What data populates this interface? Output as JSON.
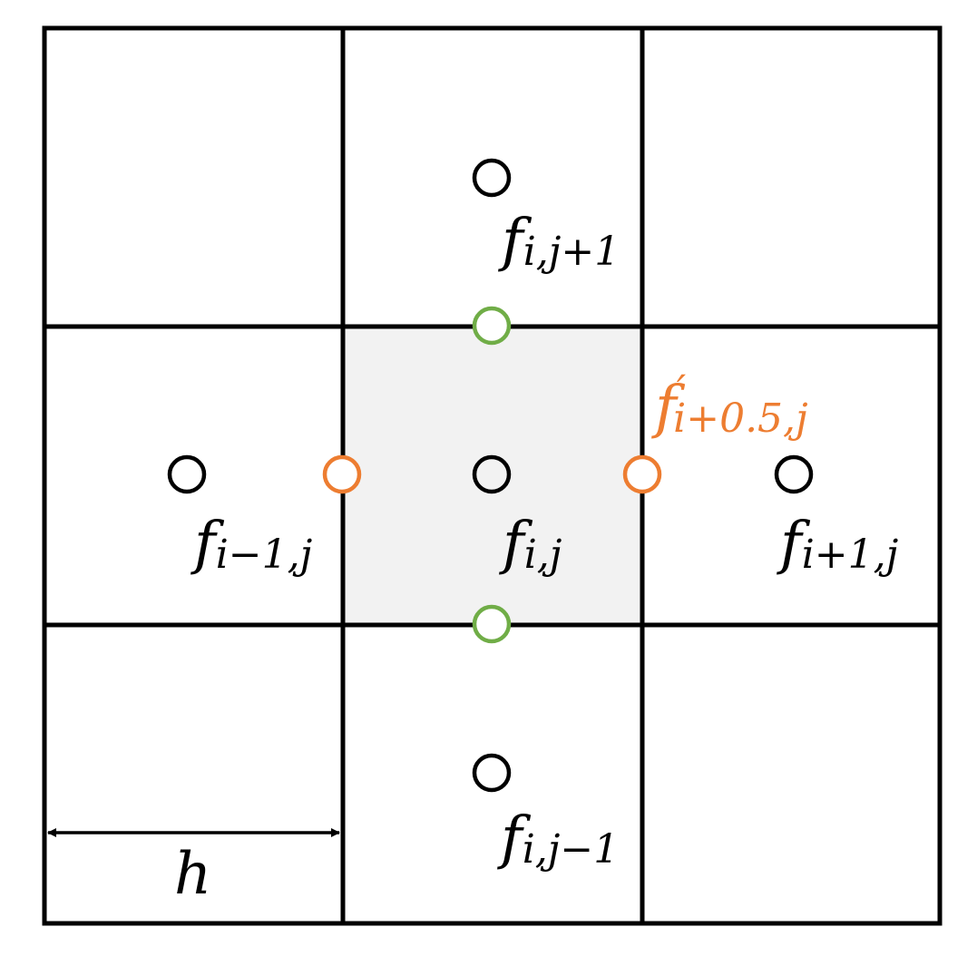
{
  "colors": {
    "grid": "#000000",
    "center_cell_fill": "#f2f2f2",
    "cell_center_node": "#000000",
    "x_face_node": "#ed7d31",
    "y_face_node": "#70ad47",
    "face_label": "#ed7d31"
  },
  "labels": {
    "top": {
      "base": "f",
      "sub": "i,j+1",
      "prime": ""
    },
    "left": {
      "base": "f",
      "sub": "i−1,j",
      "prime": ""
    },
    "center": {
      "base": "f",
      "sub": "i,j",
      "prime": ""
    },
    "right": {
      "base": "f",
      "sub": "i+1,j",
      "prime": ""
    },
    "bottom": {
      "base": "f",
      "sub": "i,j−1",
      "prime": ""
    },
    "face": {
      "base": "f",
      "sub": "i+0.5,j",
      "prime": "′"
    }
  },
  "spacing": {
    "label": "h"
  }
}
